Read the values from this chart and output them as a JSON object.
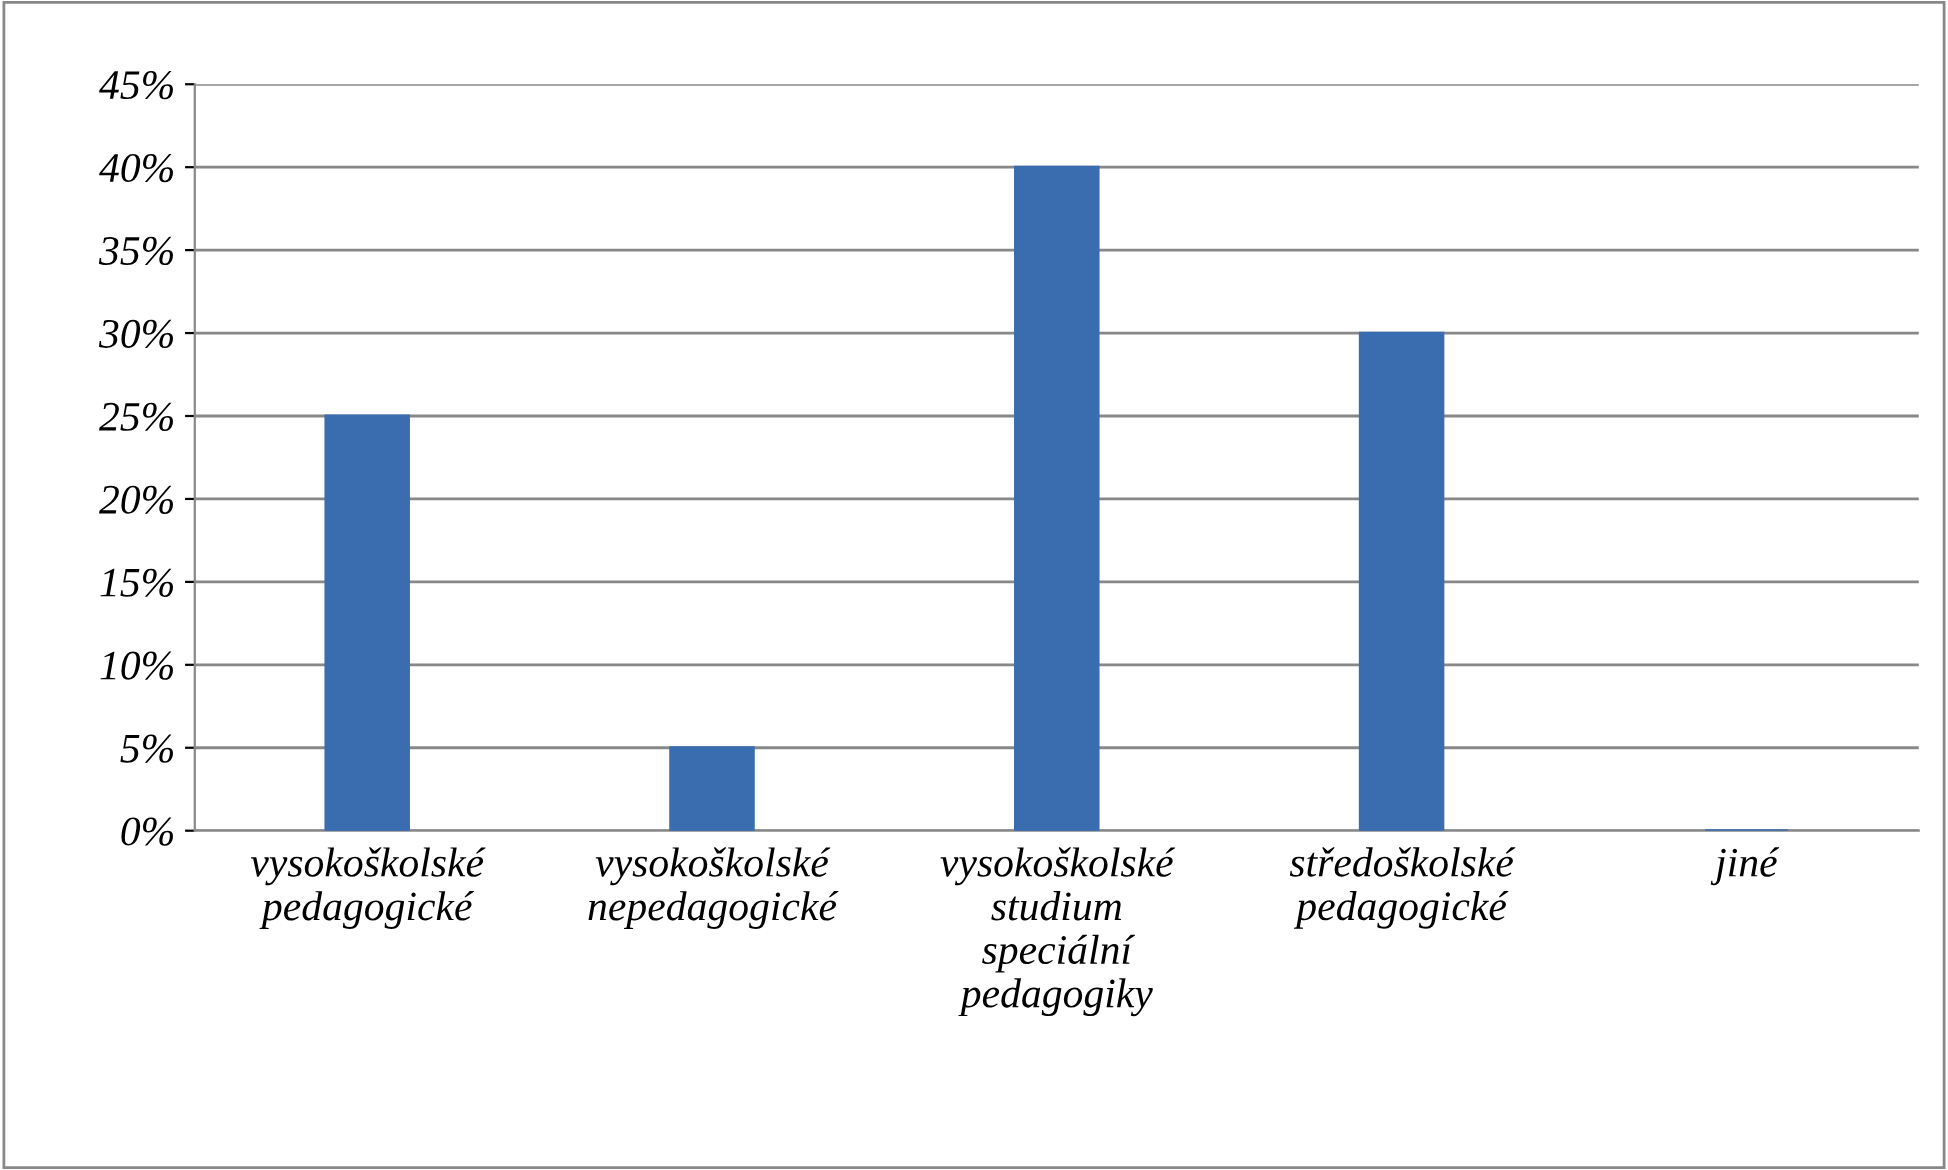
{
  "chart_data": {
    "type": "bar",
    "categories": [
      "vysokoškolské\npedagogické",
      "vysokoškolské\nnepedagogické",
      "vysokoškolské\nstudium\nspeciální\npedagogiky",
      "středoškolské\npedagogické",
      "jiné"
    ],
    "values": [
      25,
      5,
      40,
      30,
      0
    ],
    "color": "#3a6db0",
    "ylim": [
      0,
      45
    ],
    "yticks": [
      {
        "value": 0,
        "label": "0%"
      },
      {
        "value": 5,
        "label": "5%"
      },
      {
        "value": 10,
        "label": "10%"
      },
      {
        "value": 15,
        "label": "15%"
      },
      {
        "value": 20,
        "label": "20%"
      },
      {
        "value": 25,
        "label": "25%"
      },
      {
        "value": 30,
        "label": "30%"
      },
      {
        "value": 35,
        "label": "35%"
      },
      {
        "value": 40,
        "label": "40%"
      },
      {
        "value": 45,
        "label": "45%"
      }
    ],
    "grid": "y"
  }
}
